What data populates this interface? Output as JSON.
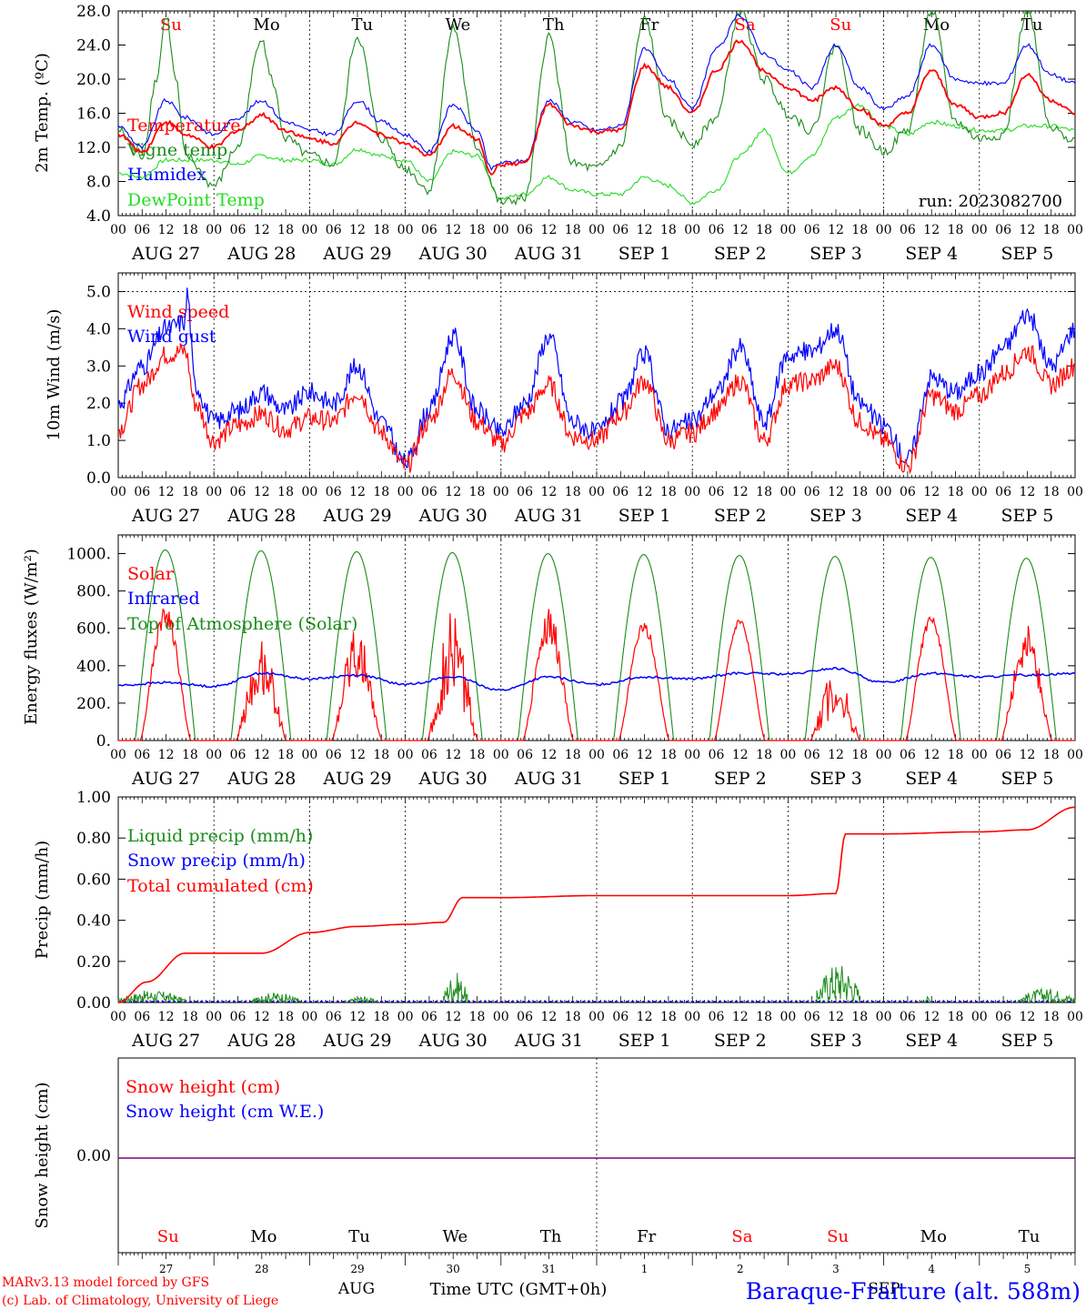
{
  "colors": {
    "temp": "#ff0000",
    "vigne": "#1a8c1a",
    "humidex": "#0000ff",
    "dewpoint": "#22dd22",
    "solar": "#ff0000",
    "infrared": "#0000ff",
    "toa": "#1a8c1a",
    "liquid": "#1a8c1a",
    "snow": "#0000ff",
    "cumul": "#ff0000",
    "snowheight": "#800080",
    "weekend": "#ff0000",
    "weekday": "#000000"
  },
  "days": [
    "27",
    "28",
    "29",
    "30",
    "31",
    "1",
    "2",
    "3",
    "4",
    "5"
  ],
  "weekdays": [
    {
      "label": "Su",
      "weekend": true
    },
    {
      "label": "Mo",
      "weekend": false
    },
    {
      "label": "Tu",
      "weekend": false
    },
    {
      "label": "We",
      "weekend": false
    },
    {
      "label": "Th",
      "weekend": false
    },
    {
      "label": "Fr",
      "weekend": false
    },
    {
      "label": "Sa",
      "weekend": true
    },
    {
      "label": "Su",
      "weekend": true
    },
    {
      "label": "Mo",
      "weekend": false
    },
    {
      "label": "Tu",
      "weekend": false
    }
  ],
  "date_labels": [
    "AUG 27",
    "AUG 28",
    "AUG 29",
    "AUG 30",
    "AUG 31",
    "SEP  1",
    "SEP  2",
    "SEP  3",
    "SEP  4",
    "SEP  5"
  ],
  "hour_ticks": [
    "00",
    "06",
    "12",
    "18"
  ],
  "footer": {
    "model": "MARv3.13 model forced by GFS",
    "copyright": "(c) Lab. of Climatology, University of Liege",
    "month_aug": "AUG",
    "month_sep": "SEP",
    "time_label": "Time UTC (GMT+0h)",
    "station": "Baraque-Fraiture (alt. 588m)"
  },
  "chart_data": [
    {
      "type": "line",
      "ylabel": "2m Temp. (ºC)",
      "ylim": [
        4,
        28
      ],
      "yticks": [
        "4.0",
        "8.0",
        "12.0",
        "16.0",
        "20.0",
        "24.0",
        "28.0"
      ],
      "run_label": "run: 2023082700",
      "x_unit": "days since 2023-08-27 00 UTC",
      "legend": [
        "Temperature",
        "Vigne temp",
        "Humidex",
        "DewPoint Temp"
      ],
      "series": [
        {
          "name": "Temperature",
          "x": [
            0,
            0.25,
            0.5,
            0.7,
            1,
            1.25,
            1.5,
            1.75,
            2,
            2.25,
            2.5,
            2.75,
            3,
            3.25,
            3.5,
            3.75,
            3.9,
            4,
            4.25,
            4.5,
            4.75,
            5,
            5.25,
            5.5,
            5.75,
            6,
            6.25,
            6.5,
            6.75,
            7,
            7.25,
            7.5,
            7.75,
            8,
            8.25,
            8.5,
            8.75,
            9,
            9.25,
            9.5,
            9.75,
            10
          ],
          "y": [
            13.5,
            11.5,
            15,
            13.5,
            12,
            14,
            15.8,
            14,
            13,
            12.5,
            15,
            13.5,
            12.5,
            11,
            14.5,
            13,
            9,
            10,
            10.2,
            17,
            14.5,
            13.8,
            14,
            21.5,
            19,
            16,
            21,
            24.5,
            21,
            19,
            17.5,
            19,
            16.5,
            14.5,
            16,
            21,
            17,
            15.5,
            16,
            20.5,
            17.5,
            16
          ]
        },
        {
          "name": "Humidex",
          "x": [
            0,
            0.25,
            0.5,
            0.7,
            1,
            1.25,
            1.5,
            1.75,
            2,
            2.25,
            2.5,
            2.75,
            3,
            3.25,
            3.5,
            3.75,
            3.9,
            4,
            4.25,
            4.5,
            4.75,
            5,
            5.25,
            5.5,
            5.75,
            6,
            6.25,
            6.5,
            6.75,
            7,
            7.25,
            7.5,
            7.75,
            8,
            8.25,
            8.5,
            8.75,
            9,
            9.25,
            9.5,
            9.75,
            10
          ],
          "y": [
            14.5,
            12,
            17.5,
            15.5,
            13.5,
            15.5,
            17.5,
            15,
            14,
            13.5,
            17.5,
            15,
            13.5,
            11.5,
            17,
            14,
            9.5,
            10.2,
            10.4,
            17.5,
            15,
            14,
            14.5,
            23.5,
            20,
            16.5,
            23.5,
            27.5,
            23,
            21,
            19,
            24,
            19,
            16.5,
            18,
            24,
            20,
            19.5,
            19.5,
            24,
            20.5,
            19.5
          ]
        },
        {
          "name": "Vigne temp",
          "x": [
            0,
            0.25,
            0.4,
            0.5,
            0.6,
            0.7,
            1,
            1.25,
            1.5,
            1.6,
            1.75,
            2,
            2.25,
            2.5,
            2.75,
            3,
            3.25,
            3.5,
            3.75,
            4,
            4.25,
            4.5,
            4.75,
            5,
            5.25,
            5.5,
            5.75,
            6,
            6.25,
            6.5,
            6.75,
            7,
            7.25,
            7.5,
            7.75,
            8,
            8.25,
            8.5,
            8.75,
            9,
            9.25,
            9.5,
            9.75,
            10
          ],
          "y": [
            14,
            11,
            20,
            27.5,
            20,
            11,
            7.5,
            12,
            25,
            20,
            13,
            11,
            10,
            25,
            13,
            9.5,
            7,
            26,
            12,
            5.5,
            6,
            25,
            10,
            9.5,
            12,
            27,
            15,
            12.5,
            15.5,
            28,
            20,
            16,
            14,
            24,
            14,
            11.5,
            14,
            28,
            15,
            13,
            13.5,
            28,
            14,
            13
          ]
        },
        {
          "name": "DewPoint Temp",
          "x": [
            0,
            0.25,
            0.5,
            0.75,
            1,
            1.25,
            1.5,
            1.75,
            2,
            2.25,
            2.5,
            2.75,
            3,
            3.25,
            3.5,
            3.75,
            4,
            4.25,
            4.5,
            4.75,
            5,
            5.25,
            5.5,
            5.75,
            6,
            6.25,
            6.5,
            6.75,
            7,
            7.25,
            7.5,
            7.75,
            8,
            8.25,
            8.5,
            8.75,
            9,
            9.25,
            9.5,
            9.75,
            10
          ],
          "y": [
            9,
            8.5,
            10.5,
            10.5,
            10.5,
            10,
            11,
            10.5,
            10.5,
            10,
            11.8,
            11,
            10.5,
            8,
            11.5,
            11,
            6,
            6.5,
            8.5,
            7,
            6.5,
            6.5,
            8.5,
            7.5,
            5.5,
            7,
            11,
            14,
            9,
            11,
            15.5,
            17,
            14.5,
            13.5,
            15,
            14.5,
            14,
            14,
            14.5,
            14.5,
            14
          ]
        }
      ]
    },
    {
      "type": "line",
      "ylabel": "10m Wind (m/s)",
      "ylim": [
        0,
        5.5
      ],
      "yticks": [
        "0.0",
        "1.0",
        "2.0",
        "3.0",
        "4.0",
        "5.0"
      ],
      "x_unit": "days since 2023-08-27 00 UTC",
      "legend": [
        "Wind speed",
        "Wind gust"
      ],
      "series": [
        {
          "name": "Wind speed",
          "x": [
            0,
            0.25,
            0.5,
            0.7,
            0.8,
            1,
            1.25,
            1.5,
            1.75,
            2,
            2.25,
            2.5,
            2.75,
            3,
            3.25,
            3.5,
            3.75,
            4,
            4.25,
            4.5,
            4.75,
            5,
            5.25,
            5.5,
            5.75,
            6,
            6.25,
            6.5,
            6.75,
            7,
            7.25,
            7.5,
            7.75,
            8,
            8.25,
            8.5,
            8.75,
            9,
            9.25,
            9.5,
            9.75,
            10
          ],
          "y": [
            1.3,
            2.5,
            3.3,
            3.4,
            2.0,
            1.0,
            1.4,
            1.7,
            1.3,
            1.6,
            1.5,
            2.3,
            1.2,
            0.3,
            1.5,
            2.8,
            1.5,
            0.9,
            1.7,
            2.5,
            1.1,
            1.0,
            1.7,
            2.6,
            1.0,
            1.2,
            1.8,
            2.6,
            1.0,
            2.5,
            2.6,
            3.0,
            1.5,
            1.0,
            0.3,
            2.2,
            1.8,
            2.2,
            2.8,
            3.4,
            2.5,
            3.0
          ]
        },
        {
          "name": "Wind gust",
          "x": [
            0,
            0.25,
            0.5,
            0.7,
            0.72,
            0.8,
            1,
            1.25,
            1.5,
            1.75,
            2,
            2.25,
            2.5,
            2.75,
            3,
            3.25,
            3.5,
            3.75,
            4,
            4.25,
            4.5,
            4.75,
            5,
            5.25,
            5.5,
            5.75,
            6,
            6.25,
            6.5,
            6.75,
            7,
            7.25,
            7.5,
            7.75,
            8,
            8.25,
            8.5,
            8.75,
            9,
            9.25,
            9.5,
            9.75,
            10
          ],
          "y": [
            2.0,
            3.0,
            4.0,
            4.2,
            5.0,
            2.5,
            1.5,
            1.8,
            2.3,
            1.8,
            2.3,
            2.0,
            3.0,
            1.5,
            0.4,
            1.8,
            3.8,
            1.8,
            1.2,
            2.0,
            3.8,
            1.5,
            1.2,
            2.0,
            3.3,
            1.3,
            1.5,
            2.3,
            3.5,
            1.5,
            3.3,
            3.4,
            4.0,
            2.0,
            1.4,
            0.5,
            2.7,
            2.3,
            2.8,
            3.5,
            4.4,
            3.0,
            4.0
          ]
        }
      ]
    },
    {
      "type": "line",
      "ylabel": "Energy fluxes (W/m²)",
      "ylim": [
        0,
        1100
      ],
      "yticks": [
        "0.",
        "200.",
        "400.",
        "600.",
        "800.",
        "1000."
      ],
      "x_unit": "days since 2023-08-27 00 UTC",
      "legend": [
        "Solar",
        "Infrared",
        "Top of Atmosphere (Solar)"
      ],
      "toa_peaks": [
        1020,
        1015,
        1010,
        1005,
        1000,
        995,
        990,
        985,
        980,
        975
      ],
      "solar_peaks": [
        720,
        580,
        600,
        700,
        720,
        640,
        650,
        400,
        670,
        630
      ],
      "infrared": {
        "x": [
          0,
          0.5,
          1,
          1.5,
          2,
          2.5,
          3,
          3.5,
          4,
          4.5,
          5,
          5.5,
          6,
          6.5,
          7,
          7.5,
          8,
          8.5,
          9,
          9.5,
          10
        ],
        "y": [
          295,
          310,
          290,
          360,
          330,
          350,
          300,
          340,
          270,
          340,
          300,
          340,
          330,
          360,
          355,
          385,
          310,
          360,
          340,
          350,
          360
        ]
      }
    },
    {
      "type": "line",
      "ylabel": "Precip (mm/h)",
      "ylim": [
        0,
        1.0
      ],
      "yticks": [
        "0.00",
        "0.20",
        "0.40",
        "0.60",
        "0.80",
        "1.00"
      ],
      "x_unit": "days since 2023-08-27 00 UTC",
      "legend": [
        "Liquid precip (mm/h)",
        "Snow precip (mm/h)",
        "Total cumulated (cm)"
      ],
      "series": [
        {
          "name": "Total cumulated (cm)",
          "x": [
            0,
            0.3,
            0.7,
            1.5,
            2,
            2.5,
            3,
            3.4,
            3.6,
            4,
            5,
            6,
            7,
            7.5,
            7.6,
            8,
            9,
            9.5,
            10
          ],
          "y": [
            0,
            0.1,
            0.24,
            0.24,
            0.34,
            0.37,
            0.38,
            0.39,
            0.51,
            0.51,
            0.52,
            0.52,
            0.52,
            0.53,
            0.82,
            0.82,
            0.83,
            0.84,
            0.95
          ]
        },
        {
          "name": "Liquid precip (mm/h)",
          "bursts": [
            [
              0,
              0.7,
              0.06
            ],
            [
              1.4,
              1.9,
              0.05
            ],
            [
              2.4,
              2.7,
              0.03
            ],
            [
              3.4,
              3.65,
              0.15
            ],
            [
              7.3,
              7.75,
              0.2
            ],
            [
              8.4,
              8.5,
              0.03
            ],
            [
              9.4,
              10,
              0.07
            ]
          ]
        }
      ]
    },
    {
      "type": "line",
      "ylabel": "Snow height (cm)",
      "ytick": "0.00",
      "legend": [
        "Snow height (cm)",
        "Snow height (cm W.E.)"
      ],
      "series": [
        {
          "name": "Snow height (cm)",
          "value": 0
        }
      ]
    }
  ]
}
